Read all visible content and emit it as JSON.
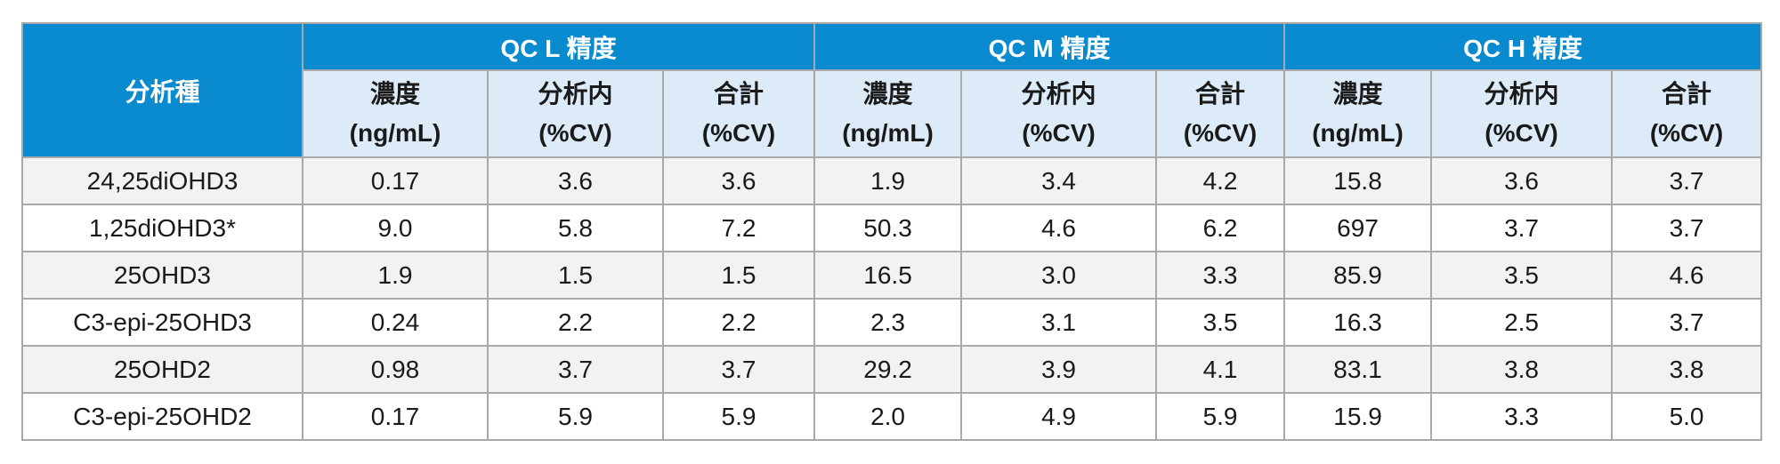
{
  "table": {
    "analyte_header": "分析種",
    "groups": [
      {
        "label": "QC L 精度"
      },
      {
        "label": "QC M 精度"
      },
      {
        "label": "QC H 精度"
      }
    ],
    "subheaders": [
      {
        "line1": "濃度",
        "line2": "(ng/mL)"
      },
      {
        "line1": "分析内",
        "line2": "(%CV)"
      },
      {
        "line1": "合計",
        "line2": "(%CV)"
      }
    ],
    "rows": [
      {
        "analyte": "24,25diOHD3",
        "values": [
          "0.17",
          "3.6",
          "3.6",
          "1.9",
          "3.4",
          "4.2",
          "15.8",
          "3.6",
          "3.7"
        ]
      },
      {
        "analyte": "1,25diOHD3*",
        "values": [
          "9.0",
          "5.8",
          "7.2",
          "50.3",
          "4.6",
          "6.2",
          "697",
          "3.7",
          "3.7"
        ]
      },
      {
        "analyte": "25OHD3",
        "values": [
          "1.9",
          "1.5",
          "1.5",
          "16.5",
          "3.0",
          "3.3",
          "85.9",
          "3.5",
          "4.6"
        ]
      },
      {
        "analyte": "C3-epi-25OHD3",
        "values": [
          "0.24",
          "2.2",
          "2.2",
          "2.3",
          "3.1",
          "3.5",
          "16.3",
          "2.5",
          "3.7"
        ]
      },
      {
        "analyte": "25OHD2",
        "values": [
          "0.98",
          "3.7",
          "3.7",
          "29.2",
          "3.9",
          "4.1",
          "83.1",
          "3.8",
          "3.8"
        ]
      },
      {
        "analyte": "C3-epi-25OHD2",
        "values": [
          "0.17",
          "5.9",
          "5.9",
          "2.0",
          "4.9",
          "5.9",
          "15.9",
          "3.3",
          "5.0"
        ]
      }
    ]
  },
  "colors": {
    "header_blue": "#0a8bd0",
    "subheader_bg": "#dcebf7",
    "stripe": "#f2f2f2",
    "border": "#a9a9a9"
  }
}
